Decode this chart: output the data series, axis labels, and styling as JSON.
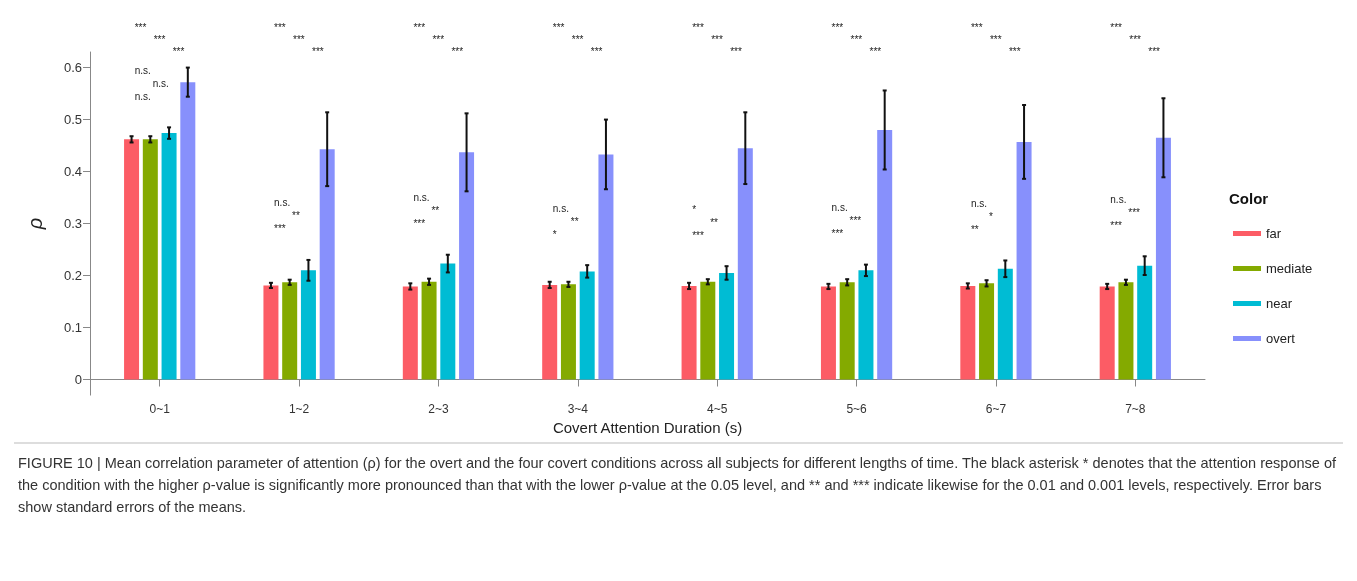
{
  "chart_data": {
    "type": "bar",
    "xlabel": "Covert Attention Duration (s)",
    "ylabel": "ρ",
    "legend_title": "Color",
    "categories": [
      "0~1",
      "1~2",
      "2~3",
      "3~4",
      "4~5",
      "5~6",
      "6~7",
      "7~8"
    ],
    "series": [
      {
        "name": "far",
        "color": "#fc5c65",
        "values": [
          0.462,
          0.181,
          0.179,
          0.182,
          0.18,
          0.179,
          0.18,
          0.179
        ],
        "errors": [
          0.006,
          0.005,
          0.006,
          0.006,
          0.006,
          0.005,
          0.005,
          0.005
        ]
      },
      {
        "name": "mediate",
        "color": "#84aa00",
        "values": [
          0.462,
          0.187,
          0.188,
          0.183,
          0.188,
          0.187,
          0.185,
          0.187
        ],
        "errors": [
          0.006,
          0.005,
          0.006,
          0.005,
          0.005,
          0.006,
          0.006,
          0.005
        ]
      },
      {
        "name": "near",
        "color": "#00bcd4",
        "values": [
          0.474,
          0.21,
          0.223,
          0.208,
          0.205,
          0.21,
          0.213,
          0.219
        ],
        "errors": [
          0.011,
          0.02,
          0.017,
          0.012,
          0.013,
          0.011,
          0.016,
          0.018
        ]
      },
      {
        "name": "overt",
        "color": "#8790fc",
        "values": [
          0.572,
          0.443,
          0.437,
          0.433,
          0.445,
          0.48,
          0.457,
          0.465
        ],
        "errors": [
          0.028,
          0.071,
          0.075,
          0.067,
          0.069,
          0.076,
          0.071,
          0.076
        ]
      }
    ],
    "ylim": [
      -0.03,
      0.63
    ],
    "yticks": [
      0,
      0.1,
      0.2,
      0.3,
      0.4,
      0.5,
      0.6
    ],
    "grid": false,
    "legend": "right",
    "annotations": [
      "***",
      "***",
      "***",
      "n.s.",
      "n.s.",
      "n.s.",
      "***",
      "***",
      "***",
      "n.s.",
      "**",
      "***",
      "***",
      "***",
      "***",
      "n.s.",
      "**",
      "***",
      "***",
      "***",
      "***",
      "n.s.",
      "**",
      "*",
      "***",
      "***",
      "***",
      "*",
      "**",
      "***",
      "***",
      "***",
      "***",
      "n.s.",
      "***",
      "***",
      "***",
      "***",
      "***",
      "n.s.",
      "*",
      "**",
      "***",
      "***",
      "***",
      "n.s.",
      "***",
      "***",
      "FIGURE 10 | Mean correlation parameter of attention (ρ) for the overt and the four covert conditions across all subjects for different lengths of time. The black asterisk * denotes that the attention response of the condition with the higher ρ-value is significantly more pronounced than that with the lower ρ-value at the 0.05 level, and ** and *** indicate likewise for the 0.01 and 0.001 levels, respectively. Error bars show standard errors of the means."
    ]
  }
}
